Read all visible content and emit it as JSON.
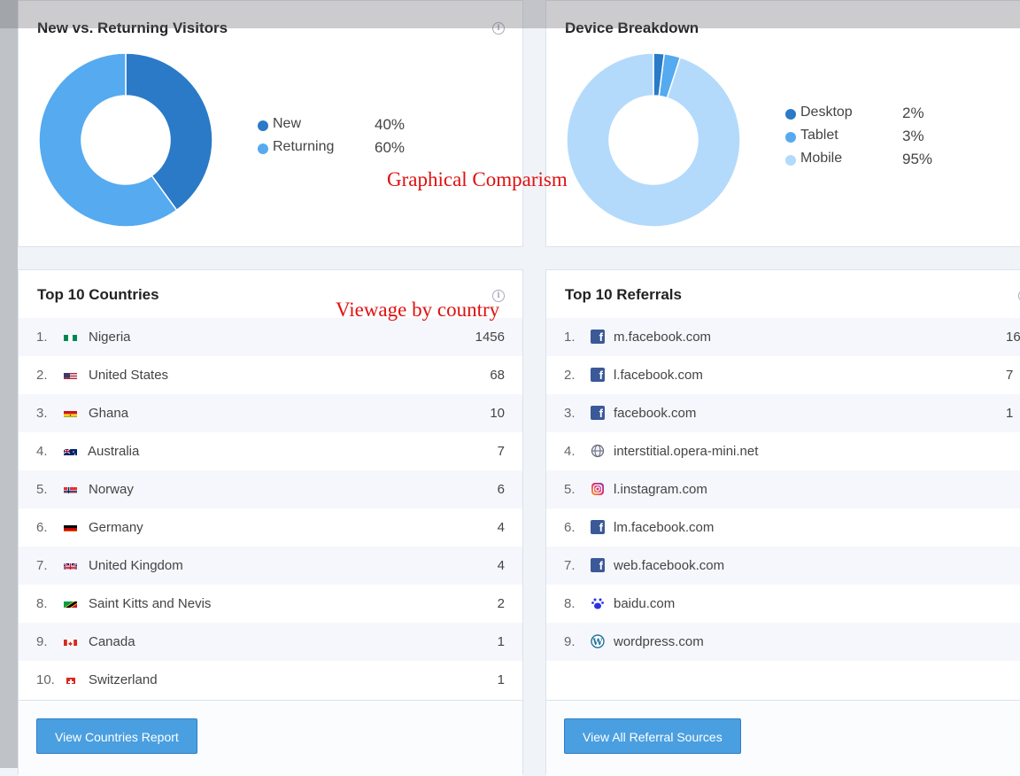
{
  "visitors": {
    "title": "New vs. Returning Visitors",
    "legend": [
      {
        "label": "New",
        "value": "40%",
        "color": "#2a7ac7"
      },
      {
        "label": "Returning",
        "value": "60%",
        "color": "#55aaf0"
      }
    ]
  },
  "device": {
    "title": "Device Breakdown",
    "legend": [
      {
        "label": "Desktop",
        "value": "2%",
        "color": "#2a7ac7"
      },
      {
        "label": "Tablet",
        "value": "3%",
        "color": "#55aaf0"
      },
      {
        "label": "Mobile",
        "value": "95%",
        "color": "#b3dafb"
      }
    ]
  },
  "countries": {
    "title": "Top 10 Countries",
    "rows": [
      {
        "rank": "1.",
        "name": "Nigeria",
        "count": "1456",
        "flag": "ng"
      },
      {
        "rank": "2.",
        "name": "United States",
        "count": "68",
        "flag": "us"
      },
      {
        "rank": "3.",
        "name": "Ghana",
        "count": "10",
        "flag": "gh"
      },
      {
        "rank": "4.",
        "name": "Australia",
        "count": "7",
        "flag": "au"
      },
      {
        "rank": "5.",
        "name": "Norway",
        "count": "6",
        "flag": "no"
      },
      {
        "rank": "6.",
        "name": "Germany",
        "count": "4",
        "flag": "de"
      },
      {
        "rank": "7.",
        "name": "United Kingdom",
        "count": "4",
        "flag": "gb"
      },
      {
        "rank": "8.",
        "name": "Saint Kitts and Nevis",
        "count": "2",
        "flag": "kn"
      },
      {
        "rank": "9.",
        "name": "Canada",
        "count": "1",
        "flag": "ca"
      },
      {
        "rank": "10.",
        "name": "Switzerland",
        "count": "1",
        "flag": "ch"
      }
    ],
    "button": "View Countries Report"
  },
  "referrals": {
    "title": "Top 10 Referrals",
    "rows": [
      {
        "rank": "1.",
        "name": "m.facebook.com",
        "count": "16",
        "icon": "facebook-icon"
      },
      {
        "rank": "2.",
        "name": "l.facebook.com",
        "count": "7",
        "icon": "facebook-icon"
      },
      {
        "rank": "3.",
        "name": "facebook.com",
        "count": "1",
        "icon": "facebook-icon"
      },
      {
        "rank": "4.",
        "name": "interstitial.opera-mini.net",
        "count": "",
        "icon": "globe-icon"
      },
      {
        "rank": "5.",
        "name": "l.instagram.com",
        "count": "",
        "icon": "instagram-icon"
      },
      {
        "rank": "6.",
        "name": "lm.facebook.com",
        "count": "",
        "icon": "facebook-icon"
      },
      {
        "rank": "7.",
        "name": "web.facebook.com",
        "count": "",
        "icon": "facebook-icon"
      },
      {
        "rank": "8.",
        "name": "baidu.com",
        "count": "",
        "icon": "baidu-icon"
      },
      {
        "rank": "9.",
        "name": "wordpress.com",
        "count": "",
        "icon": "wordpress-icon"
      }
    ],
    "button": "View All Referral Sources"
  },
  "annotations": {
    "graphical": "Graphical Comparism",
    "country": "Viewage by country"
  }
}
